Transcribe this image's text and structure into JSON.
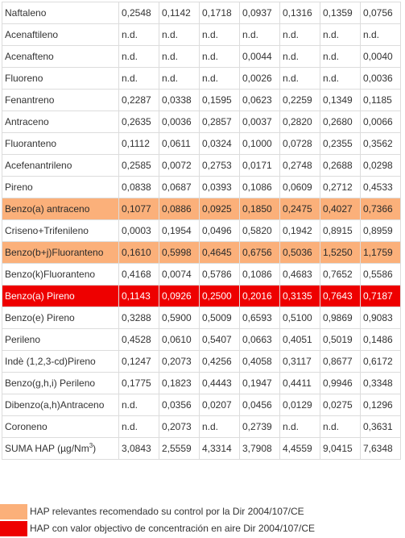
{
  "table": {
    "rows": [
      {
        "name": "Naftaleno",
        "values": [
          "0,2548",
          "0,1142",
          "0,1718",
          "0,0937",
          "0,1316",
          "0,1359",
          "0,0756"
        ],
        "highlight": ""
      },
      {
        "name": "Acenaftileno",
        "values": [
          "n.d.",
          "n.d.",
          "n.d.",
          "n.d.",
          "n.d.",
          "n.d.",
          "n.d."
        ],
        "highlight": ""
      },
      {
        "name": "Acenafteno",
        "values": [
          "n.d.",
          "n.d.",
          "n.d.",
          "0,0044",
          "n.d.",
          "n.d.",
          "0,0040"
        ],
        "highlight": ""
      },
      {
        "name": "Fluoreno",
        "values": [
          "n.d.",
          "n.d.",
          "n.d.",
          "0,0026",
          "n.d.",
          "n.d.",
          "0,0036"
        ],
        "highlight": ""
      },
      {
        "name": "Fenantreno",
        "values": [
          "0,2287",
          "0,0338",
          "0,1595",
          "0,0623",
          "0,2259",
          "0,1349",
          "0,1185"
        ],
        "highlight": ""
      },
      {
        "name": "Antraceno",
        "values": [
          "0,2635",
          "0,0036",
          "0,2857",
          "0,0037",
          "0,2820",
          "0,2680",
          "0,0066"
        ],
        "highlight": ""
      },
      {
        "name": "Fluoranteno",
        "values": [
          "0,1112",
          "0,0611",
          "0,0324",
          "0,1000",
          "0,0728",
          "0,2355",
          "0,3562"
        ],
        "highlight": ""
      },
      {
        "name": "Acefenantrileno",
        "values": [
          "0,2585",
          "0,0072",
          "0,2753",
          "0,0171",
          "0,2748",
          "0,2688",
          "0,0298"
        ],
        "highlight": ""
      },
      {
        "name": "Pireno",
        "values": [
          "0,0838",
          "0,0687",
          "0,0393",
          "0,1086",
          "0,0609",
          "0,2712",
          "0,4533"
        ],
        "highlight": ""
      },
      {
        "name": "Benzo(a) antraceno",
        "values": [
          "0,1077",
          "0,0886",
          "0,0925",
          "0,1850",
          "0,2475",
          "0,4027",
          "0,7366"
        ],
        "highlight": "orange"
      },
      {
        "name": "Criseno+Trifenileno",
        "values": [
          "0,0003",
          "0,1954",
          "0,0496",
          "0,5820",
          "0,1942",
          "0,8915",
          "0,8959"
        ],
        "highlight": ""
      },
      {
        "name": "Benzo(b+j)Fluoranteno",
        "values": [
          "0,1610",
          "0,5998",
          "0,4645",
          "0,6756",
          "0,5036",
          "1,5250",
          "1,1759"
        ],
        "highlight": "orange"
      },
      {
        "name": "Benzo(k)Fluoranteno",
        "values": [
          "0,4168",
          "0,0074",
          "0,5786",
          "0,1086",
          "0,4683",
          "0,7652",
          "0,5586"
        ],
        "highlight": ""
      },
      {
        "name": "Benzo(a) Pireno",
        "values": [
          "0,1143",
          "0,0926",
          "0,2500",
          "0,2016",
          "0,3135",
          "0,7643",
          "0,7187"
        ],
        "highlight": "red"
      },
      {
        "name": "Benzo(e) Pireno",
        "values": [
          "0,3288",
          "0,5900",
          "0,5009",
          "0,6593",
          "0,5100",
          "0,9869",
          "0,9083"
        ],
        "highlight": ""
      },
      {
        "name": "Perileno",
        "values": [
          "0,4528",
          "0,0610",
          "0,5407",
          "0,0663",
          "0,4051",
          "0,5019",
          "0,1486"
        ],
        "highlight": ""
      },
      {
        "name": "Indè (1,2,3-cd)Pireno",
        "values": [
          "0,1247",
          "0,2073",
          "0,4256",
          "0,4058",
          "0,3117",
          "0,8677",
          "0,6172"
        ],
        "highlight": ""
      },
      {
        "name": "Benzo(g,h,i) Perileno",
        "values": [
          "0,1775",
          "0,1823",
          "0,4443",
          "0,1947",
          "0,4411",
          "0,9946",
          "0,3348"
        ],
        "highlight": ""
      },
      {
        "name": "Dibenzo(a,h)Antraceno",
        "values": [
          "n.d.",
          "0,0356",
          "0,0207",
          "0,0456",
          "0,0129",
          "0,0275",
          "0,1296"
        ],
        "highlight": ""
      },
      {
        "name": "Coroneno",
        "values": [
          "n.d.",
          "0,2073",
          "n.d.",
          "0,2739",
          "n.d.",
          "n.d.",
          "0,3631"
        ],
        "highlight": ""
      }
    ],
    "total": {
      "label": "SUMA HAP (µg/Nm",
      "label_sup": "3",
      "label_end": ")",
      "values": [
        "3,0843",
        "2,5559",
        "4,3314",
        "3,7908",
        "4,4559",
        "9,0415",
        "7,6348"
      ]
    }
  },
  "colors": {
    "orange": "#fbb07a",
    "red": "#ee0000"
  },
  "legend": [
    {
      "swatch": "orange",
      "text": "HAP relevantes recomendado su control por la Dir 2004/107/CE"
    },
    {
      "swatch": "red",
      "text": "HAP con valor objectivo de concentración en aire Dir 2004/107/CE"
    }
  ]
}
